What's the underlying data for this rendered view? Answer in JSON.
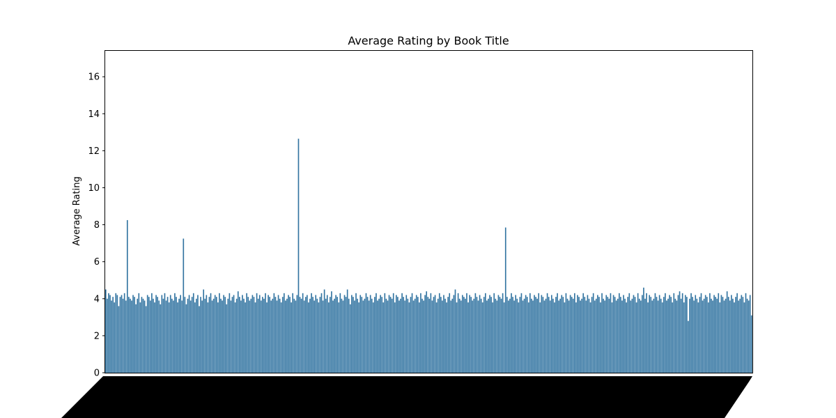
{
  "chart_data": {
    "type": "bar",
    "title": "Average Rating by Book Title",
    "xlabel": "",
    "ylabel": "Average Rating",
    "ylim": [
      0,
      17.4
    ],
    "yticks": [
      0,
      2,
      4,
      6,
      8,
      10,
      12,
      14,
      16
    ],
    "grid": false,
    "legend": "none",
    "bar_color": "#3274a1",
    "categories_note": "",
    "values": [
      4.5,
      4.0,
      4.3,
      4.2,
      3.9,
      4.1,
      3.8,
      4.3,
      4.2,
      3.6,
      4.1,
      4.2,
      4.0,
      4.3,
      3.9,
      8.25,
      4.1,
      4.0,
      3.9,
      4.2,
      4.1,
      3.7,
      4.0,
      4.3,
      3.8,
      4.1,
      4.0,
      3.9,
      3.6,
      4.2,
      4.1,
      3.9,
      4.3,
      4.0,
      3.8,
      4.2,
      4.1,
      3.9,
      3.7,
      4.2,
      4.0,
      4.3,
      3.9,
      4.1,
      3.8,
      4.2,
      4.0,
      3.9,
      4.3,
      4.1,
      3.8,
      4.0,
      4.2,
      3.9,
      7.25,
      4.1,
      3.7,
      4.0,
      4.2,
      3.9,
      4.1,
      4.3,
      3.8,
      4.0,
      4.2,
      3.6,
      4.1,
      3.9,
      4.5,
      4.0,
      4.2,
      3.8,
      4.1,
      4.3,
      3.9,
      4.0,
      4.2,
      4.1,
      3.8,
      4.3,
      4.0,
      3.9,
      4.2,
      4.1,
      3.7,
      4.0,
      4.3,
      3.9,
      4.1,
      4.2,
      3.8,
      4.0,
      4.4,
      4.1,
      3.9,
      4.2,
      4.0,
      3.8,
      4.3,
      4.1,
      3.9,
      4.0,
      4.2,
      4.1,
      3.8,
      4.3,
      4.0,
      4.2,
      3.9,
      4.1,
      4.0,
      4.3,
      3.8,
      4.2,
      4.1,
      3.9,
      4.0,
      4.3,
      4.1,
      3.9,
      4.2,
      4.0,
      3.8,
      4.1,
      4.3,
      3.9,
      4.0,
      4.2,
      4.1,
      3.8,
      4.3,
      4.0,
      3.9,
      4.2,
      12.65,
      4.1,
      4.0,
      4.3,
      3.9,
      4.1,
      4.2,
      3.8,
      4.0,
      4.3,
      4.1,
      3.9,
      4.2,
      4.0,
      3.8,
      4.1,
      4.3,
      3.9,
      4.5,
      4.0,
      4.2,
      3.8,
      4.1,
      4.4,
      3.9,
      4.0,
      4.2,
      4.1,
      3.8,
      4.3,
      4.0,
      3.9,
      4.2,
      4.1,
      4.5,
      4.0,
      3.7,
      4.2,
      4.1,
      3.9,
      4.3,
      4.0,
      3.8,
      4.2,
      4.1,
      3.9,
      4.0,
      4.3,
      4.1,
      3.9,
      4.2,
      4.0,
      3.8,
      4.1,
      4.3,
      3.9,
      4.0,
      4.2,
      4.1,
      3.8,
      4.3,
      4.0,
      3.9,
      4.2,
      4.1,
      4.0,
      4.3,
      3.8,
      4.2,
      4.1,
      3.9,
      4.0,
      4.3,
      4.1,
      3.9,
      4.2,
      4.0,
      3.8,
      4.1,
      4.3,
      3.9,
      4.0,
      4.2,
      4.1,
      3.8,
      4.3,
      4.0,
      3.9,
      4.2,
      4.4,
      4.1,
      4.0,
      4.3,
      3.9,
      4.1,
      4.2,
      3.8,
      4.0,
      4.3,
      4.1,
      3.9,
      4.2,
      4.0,
      3.8,
      4.1,
      4.3,
      3.9,
      4.0,
      4.2,
      4.5,
      3.8,
      4.3,
      4.0,
      3.9,
      4.2,
      4.1,
      4.0,
      4.3,
      3.8,
      4.2,
      4.1,
      3.9,
      4.0,
      4.3,
      4.1,
      3.9,
      4.2,
      4.0,
      3.8,
      4.1,
      4.3,
      3.9,
      4.0,
      4.2,
      4.1,
      3.8,
      4.3,
      4.0,
      3.9,
      4.2,
      4.1,
      4.0,
      4.3,
      3.8,
      7.85,
      4.1,
      3.9,
      4.0,
      4.3,
      4.1,
      3.9,
      4.2,
      4.0,
      3.8,
      4.1,
      4.3,
      3.9,
      4.0,
      4.2,
      4.1,
      3.8,
      4.3,
      4.0,
      3.9,
      4.2,
      4.1,
      4.0,
      4.3,
      3.8,
      4.2,
      4.1,
      3.9,
      4.0,
      4.3,
      4.1,
      3.9,
      4.2,
      4.0,
      3.8,
      4.1,
      4.3,
      3.9,
      4.0,
      4.2,
      4.1,
      3.8,
      4.3,
      4.0,
      3.9,
      4.2,
      4.1,
      4.0,
      4.3,
      3.8,
      4.2,
      4.1,
      3.9,
      4.0,
      4.3,
      4.1,
      3.9,
      4.2,
      4.0,
      3.8,
      4.1,
      4.3,
      3.9,
      4.0,
      4.2,
      4.1,
      3.8,
      4.3,
      4.0,
      3.9,
      4.2,
      4.1,
      4.0,
      4.3,
      3.8,
      4.2,
      4.1,
      3.9,
      4.0,
      4.3,
      4.1,
      3.9,
      4.2,
      4.0,
      3.8,
      4.1,
      4.3,
      3.9,
      4.0,
      4.2,
      4.1,
      3.8,
      4.3,
      4.0,
      3.9,
      4.2,
      4.6,
      4.0,
      4.3,
      3.8,
      4.2,
      4.1,
      3.9,
      4.0,
      4.3,
      4.1,
      3.9,
      4.2,
      4.0,
      3.8,
      4.1,
      4.3,
      3.9,
      4.0,
      4.2,
      4.1,
      3.8,
      4.3,
      4.0,
      3.9,
      4.2,
      4.4,
      4.0,
      4.3,
      3.8,
      4.2,
      4.1,
      2.8,
      4.0,
      4.3,
      4.1,
      3.9,
      4.2,
      4.0,
      3.8,
      4.1,
      4.3,
      3.9,
      4.0,
      4.2,
      4.1,
      3.8,
      4.3,
      4.0,
      3.9,
      4.2,
      4.1,
      4.0,
      4.3,
      3.8,
      4.2,
      4.1,
      3.9,
      4.0,
      4.4,
      4.1,
      3.9,
      4.2,
      4.0,
      3.8,
      4.1,
      4.3,
      3.9,
      4.0,
      4.2,
      4.1,
      3.8,
      4.3,
      4.0,
      3.9,
      4.2,
      3.1
    ]
  }
}
